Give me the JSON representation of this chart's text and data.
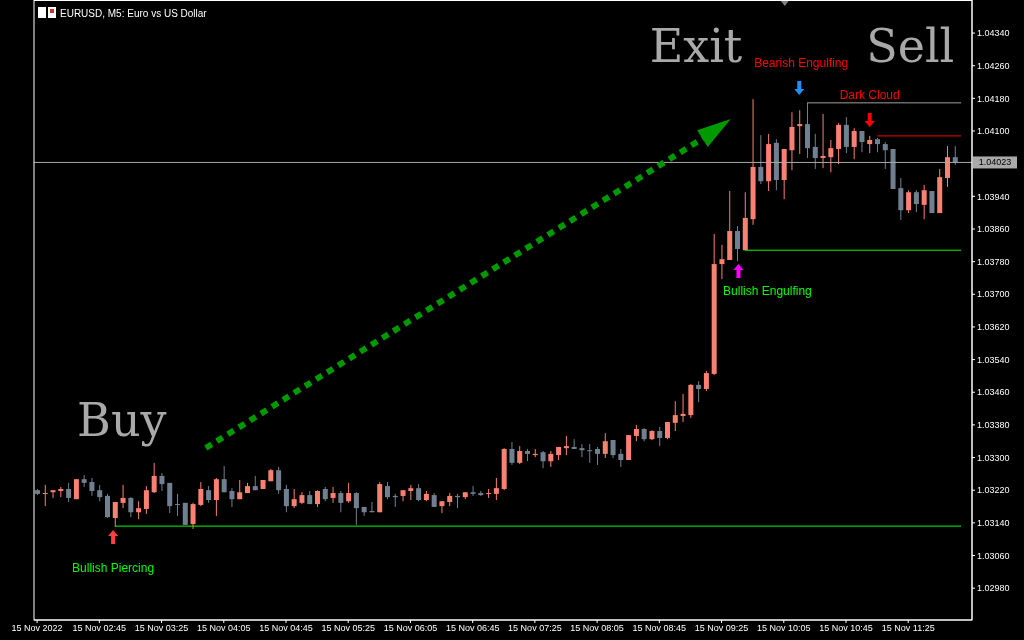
{
  "chart_data": {
    "type": "candlestick",
    "title": "EURUSD, M5: Euro vs US Dollar",
    "x": [
      "2022-11-15T02:05",
      "2022-11-15T02:10",
      "2022-11-15T02:15",
      "2022-11-15T02:20",
      "2022-11-15T02:25",
      "2022-11-15T02:30",
      "2022-11-15T02:35",
      "2022-11-15T02:40",
      "2022-11-15T02:45",
      "2022-11-15T02:50",
      "2022-11-15T02:55",
      "2022-11-15T03:00",
      "2022-11-15T03:05",
      "2022-11-15T03:10",
      "2022-11-15T03:15",
      "2022-11-15T03:20",
      "2022-11-15T03:25",
      "2022-11-15T03:30",
      "2022-11-15T03:35",
      "2022-11-15T03:40",
      "2022-11-15T03:45",
      "2022-11-15T03:50",
      "2022-11-15T03:55",
      "2022-11-15T04:00",
      "2022-11-15T04:05",
      "2022-11-15T04:10",
      "2022-11-15T04:15",
      "2022-11-15T04:20",
      "2022-11-15T04:25",
      "2022-11-15T04:30",
      "2022-11-15T04:35",
      "2022-11-15T04:40",
      "2022-11-15T04:45",
      "2022-11-15T04:50",
      "2022-11-15T04:55",
      "2022-11-15T05:00",
      "2022-11-15T05:05",
      "2022-11-15T05:10",
      "2022-11-15T05:15",
      "2022-11-15T05:20",
      "2022-11-15T05:25",
      "2022-11-15T05:30",
      "2022-11-15T05:35",
      "2022-11-15T05:40",
      "2022-11-15T05:45",
      "2022-11-15T05:50",
      "2022-11-15T05:55",
      "2022-11-15T06:00",
      "2022-11-15T06:05",
      "2022-11-15T06:10",
      "2022-11-15T06:15",
      "2022-11-15T06:20",
      "2022-11-15T06:25",
      "2022-11-15T06:30",
      "2022-11-15T06:35",
      "2022-11-15T06:40",
      "2022-11-15T06:45",
      "2022-11-15T06:50",
      "2022-11-15T06:55",
      "2022-11-15T07:00",
      "2022-11-15T07:05",
      "2022-11-15T07:10",
      "2022-11-15T07:15",
      "2022-11-15T07:20",
      "2022-11-15T07:25",
      "2022-11-15T07:30",
      "2022-11-15T07:35",
      "2022-11-15T07:40",
      "2022-11-15T07:45",
      "2022-11-15T07:50",
      "2022-11-15T07:55",
      "2022-11-15T08:00",
      "2022-11-15T08:05",
      "2022-11-15T08:10",
      "2022-11-15T08:15",
      "2022-11-15T08:20",
      "2022-11-15T08:25",
      "2022-11-15T08:30",
      "2022-11-15T08:35",
      "2022-11-15T08:40",
      "2022-11-15T08:45",
      "2022-11-15T08:50",
      "2022-11-15T08:55",
      "2022-11-15T09:00",
      "2022-11-15T09:05",
      "2022-11-15T09:10",
      "2022-11-15T09:15",
      "2022-11-15T09:20",
      "2022-11-15T09:25",
      "2022-11-15T09:30",
      "2022-11-15T09:35",
      "2022-11-15T09:40",
      "2022-11-15T09:45",
      "2022-11-15T09:50",
      "2022-11-15T09:55",
      "2022-11-15T10:00",
      "2022-11-15T10:05",
      "2022-11-15T10:10",
      "2022-11-15T10:15",
      "2022-11-15T10:20",
      "2022-11-15T10:25",
      "2022-11-15T10:30",
      "2022-11-15T10:35",
      "2022-11-15T10:40",
      "2022-11-15T10:45",
      "2022-11-15T10:50",
      "2022-11-15T10:55",
      "2022-11-15T11:00",
      "2022-11-15T11:05",
      "2022-11-15T11:10",
      "2022-11-15T11:15",
      "2022-11-15T11:20",
      "2022-11-15T11:25",
      "2022-11-15T11:30",
      "2022-11-15T11:35",
      "2022-11-15T11:40",
      "2022-11-15T11:45",
      "2022-11-15T11:50",
      "2022-11-15T11:55"
    ],
    "ohlc": [
      [
        1.0322,
        1.03223,
        1.03208,
        1.03211
      ],
      [
        1.03211,
        1.03233,
        1.03181,
        1.03213
      ],
      [
        1.03215,
        1.0322,
        1.03201,
        1.0322
      ],
      [
        1.03218,
        1.03228,
        1.03203,
        1.03223
      ],
      [
        1.03223,
        1.03238,
        1.03191,
        1.03201
      ],
      [
        1.03198,
        1.03247,
        1.03198,
        1.03247
      ],
      [
        1.03247,
        1.03257,
        1.03228,
        1.03238
      ],
      [
        1.0324,
        1.0325,
        1.03206,
        1.03218
      ],
      [
        1.0322,
        1.03233,
        1.03193,
        1.03203
      ],
      [
        1.03206,
        1.03211,
        1.03152,
        1.03154
      ],
      [
        1.03152,
        1.03191,
        1.0313,
        1.03191
      ],
      [
        1.03189,
        1.03233,
        1.03176,
        1.03201
      ],
      [
        1.03201,
        1.03203,
        1.03154,
        1.03166
      ],
      [
        1.03166,
        1.03193,
        1.03149,
        1.03176
      ],
      [
        1.03174,
        1.0323,
        1.03162,
        1.0322
      ],
      [
        1.03215,
        1.03287,
        1.03213,
        1.03255
      ],
      [
        1.03255,
        1.03262,
        1.03218,
        1.03235
      ],
      [
        1.03238,
        1.03238,
        1.03164,
        1.03181
      ],
      [
        1.03186,
        1.03211,
        1.03157,
        1.03184
      ],
      [
        1.03189,
        1.03189,
        1.03135,
        1.03135
      ],
      [
        1.03137,
        1.03189,
        1.03125,
        1.03186
      ],
      [
        1.03184,
        1.0324,
        1.03181,
        1.03223
      ],
      [
        1.0322,
        1.0323,
        1.03189,
        1.03196
      ],
      [
        1.03196,
        1.0325,
        1.03157,
        1.03247
      ],
      [
        1.03247,
        1.03279,
        1.03215,
        1.03215
      ],
      [
        1.03218,
        1.03225,
        1.03179,
        1.03198
      ],
      [
        1.03198,
        1.03245,
        1.03198,
        1.03215
      ],
      [
        1.03213,
        1.03238,
        1.03213,
        1.0323
      ],
      [
        1.0323,
        1.03255,
        1.0322,
        1.0322
      ],
      [
        1.03223,
        1.03245,
        1.03223,
        1.03245
      ],
      [
        1.03242,
        1.03272,
        1.03242,
        1.03269
      ],
      [
        1.03269,
        1.03277,
        1.03211,
        1.0322
      ],
      [
        1.03223,
        1.03233,
        1.03166,
        1.03181
      ],
      [
        1.03181,
        1.03223,
        1.03176,
        1.03198
      ],
      [
        1.03189,
        1.03215,
        1.03186,
        1.03208
      ],
      [
        1.03208,
        1.03218,
        1.03186,
        1.03186
      ],
      [
        1.03186,
        1.0322,
        1.03179,
        1.03218
      ],
      [
        1.03223,
        1.03228,
        1.03193,
        1.03198
      ],
      [
        1.03201,
        1.03228,
        1.03189,
        1.03213
      ],
      [
        1.03213,
        1.03218,
        1.03166,
        1.03189
      ],
      [
        1.03193,
        1.03238,
        1.03189,
        1.03213
      ],
      [
        1.03213,
        1.03215,
        1.03135,
        1.03176
      ],
      [
        1.03179,
        1.03179,
        1.03157,
        1.03166
      ],
      [
        1.03169,
        1.03191,
        1.03166,
        1.03166
      ],
      [
        1.03166,
        1.0324,
        1.03166,
        1.03235
      ],
      [
        1.0323,
        1.0324,
        1.03198,
        1.03203
      ],
      [
        1.03206,
        1.03211,
        1.03179,
        1.03203
      ],
      [
        1.03206,
        1.0322,
        1.03193,
        1.0322
      ],
      [
        1.03218,
        1.03233,
        1.03196,
        1.03225
      ],
      [
        1.03225,
        1.03235,
        1.03193,
        1.03196
      ],
      [
        1.03196,
        1.03218,
        1.03193,
        1.03211
      ],
      [
        1.03208,
        1.03213,
        1.03179,
        1.03179
      ],
      [
        1.03181,
        1.03193,
        1.03164,
        1.03193
      ],
      [
        1.03191,
        1.03213,
        1.03181,
        1.03206
      ],
      [
        1.03206,
        1.03211,
        1.03176,
        1.03203
      ],
      [
        1.03203,
        1.03215,
        1.03198,
        1.03215
      ],
      [
        1.03215,
        1.0323,
        1.03206,
        1.03211
      ],
      [
        1.03213,
        1.03218,
        1.03206,
        1.03208
      ],
      [
        1.03211,
        1.03223,
        1.03201,
        1.03213
      ],
      [
        1.03211,
        1.0325,
        1.03196,
        1.03225
      ],
      [
        1.03223,
        1.03323,
        1.0322,
        1.03321
      ],
      [
        1.03321,
        1.03338,
        1.03282,
        1.03287
      ],
      [
        1.03287,
        1.03328,
        1.03284,
        1.03316
      ],
      [
        1.03316,
        1.03321,
        1.03291,
        1.03309
      ],
      [
        1.03306,
        1.03321,
        1.03301,
        1.03309
      ],
      [
        1.03313,
        1.03316,
        1.03274,
        1.03291
      ],
      [
        1.03291,
        1.03316,
        1.03277,
        1.03309
      ],
      [
        1.03306,
        1.03326,
        1.03294,
        1.03326
      ],
      [
        1.03323,
        1.03353,
        1.03306,
        1.03328
      ],
      [
        1.03326,
        1.03345,
        1.03321,
        1.03321
      ],
      [
        1.03323,
        1.03333,
        1.03301,
        1.03318
      ],
      [
        1.03318,
        1.03333,
        1.03287,
        1.03316
      ],
      [
        1.03321,
        1.03326,
        1.03282,
        1.03309
      ],
      [
        1.03309,
        1.0336,
        1.03299,
        1.0334
      ],
      [
        1.03343,
        1.03343,
        1.03299,
        1.03306
      ],
      [
        1.03309,
        1.03321,
        1.03277,
        1.03294
      ],
      [
        1.03294,
        1.03355,
        1.03294,
        1.03355
      ],
      [
        1.03353,
        1.0338,
        1.0334,
        1.0337
      ],
      [
        1.0337,
        1.03372,
        1.0334,
        1.03345
      ],
      [
        1.03345,
        1.03367,
        1.03343,
        1.03365
      ],
      [
        1.03365,
        1.03375,
        1.03328,
        1.03348
      ],
      [
        1.03348,
        1.03387,
        1.03345,
        1.03387
      ],
      [
        1.03385,
        1.03438,
        1.03365,
        1.03404
      ],
      [
        1.03402,
        1.03456,
        1.03387,
        1.03407
      ],
      [
        1.03404,
        1.0348,
        1.03397,
        1.03478
      ],
      [
        1.03478,
        1.03487,
        1.03436,
        1.03468
      ],
      [
        1.03468,
        1.03512,
        1.03463,
        1.03507
      ],
      [
        1.03505,
        1.03848,
        1.03502,
        1.03774
      ],
      [
        1.03774,
        1.03821,
        1.03737,
        1.03786
      ],
      [
        1.03784,
        1.03953,
        1.03784,
        1.03855
      ],
      [
        1.03855,
        1.03867,
        1.03781,
        1.03811
      ],
      [
        1.03808,
        1.0395,
        1.03808,
        1.03887
      ],
      [
        1.03884,
        1.04178,
        1.0387,
        1.04012
      ],
      [
        1.04012,
        1.0409,
        1.0397,
        1.03977
      ],
      [
        1.03977,
        1.04093,
        1.03953,
        1.04068
      ],
      [
        1.04071,
        1.0408,
        1.03955,
        1.0398
      ],
      [
        1.0398,
        1.04056,
        1.03933,
        1.04056
      ],
      [
        1.04053,
        1.04146,
        1.04004,
        1.0411
      ],
      [
        1.04112,
        1.04151,
        1.04044,
        1.04117
      ],
      [
        1.04117,
        1.04169,
        1.04034,
        1.04058
      ],
      [
        1.04061,
        1.04093,
        1.04007,
        1.04034
      ],
      [
        1.04034,
        1.04142,
        1.04009,
        1.04039
      ],
      [
        1.04036,
        1.04078,
        1.03999,
        1.04058
      ],
      [
        1.04056,
        1.0412,
        1.04019,
        1.04115
      ],
      [
        1.04115,
        1.04134,
        1.04046,
        1.04061
      ],
      [
        1.04061,
        1.04107,
        1.04031,
        1.041
      ],
      [
        1.041,
        1.041,
        1.04048,
        1.04073
      ],
      [
        1.04068,
        1.04088,
        1.04046,
        1.04078
      ],
      [
        1.0408,
        1.04083,
        1.04048,
        1.04068
      ],
      [
        1.04068,
        1.04073,
        1.04007,
        1.04053
      ],
      [
        1.04056,
        1.04056,
        1.03958,
        1.03958
      ],
      [
        1.0396,
        1.03985,
        1.03882,
        1.03906
      ],
      [
        1.03906,
        1.03955,
        1.03899,
        1.0395
      ],
      [
        1.0395,
        1.03955,
        1.03901,
        1.03921
      ],
      [
        1.03919,
        1.03968,
        1.03884,
        1.03955
      ],
      [
        1.03953,
        1.03953,
        1.03899,
        1.03899
      ],
      [
        1.03899,
        1.04007,
        1.03899,
        1.03987
      ],
      [
        1.03985,
        1.04063,
        1.03963,
        1.04036
      ],
      [
        1.04036,
        1.04063,
        1.04017,
        1.04023
      ]
    ],
    "colors": [
      "#708090",
      "#fa8072",
      "#fa8072",
      "#fa8072",
      "#708090",
      "#fa8072",
      "#708090",
      "#708090",
      "#708090",
      "#708090",
      "#fa8072",
      "#fa8072",
      "#708090",
      "#fa8072",
      "#fa8072",
      "#fa8072",
      "#708090",
      "#708090",
      "#708090",
      "#708090",
      "#fa8072",
      "#fa8072",
      "#708090",
      "#fa8072",
      "#708090",
      "#708090",
      "#fa8072",
      "#fa8072",
      "#708090",
      "#fa8072",
      "#fa8072",
      "#708090",
      "#708090",
      "#fa8072",
      "#fa8072",
      "#708090",
      "#fa8072",
      "#708090",
      "#fa8072",
      "#708090",
      "#fa8072",
      "#708090",
      "#708090",
      "#708090",
      "#fa8072",
      "#708090",
      "#708090",
      "#fa8072",
      "#fa8072",
      "#708090",
      "#fa8072",
      "#708090",
      "#fa8072",
      "#fa8072",
      "#708090",
      "#fa8072",
      "#708090",
      "#708090",
      "#fa8072",
      "#fa8072",
      "#fa8072",
      "#708090",
      "#fa8072",
      "#708090",
      "#fa8072",
      "#708090",
      "#fa8072",
      "#fa8072",
      "#fa8072",
      "#708090",
      "#708090",
      "#708090",
      "#708090",
      "#fa8072",
      "#708090",
      "#708090",
      "#fa8072",
      "#fa8072",
      "#708090",
      "#fa8072",
      "#708090",
      "#fa8072",
      "#fa8072",
      "#fa8072",
      "#fa8072",
      "#708090",
      "#fa8072",
      "#fa8072",
      "#fa8072",
      "#fa8072",
      "#708090",
      "#fa8072",
      "#fa8072",
      "#708090",
      "#fa8072",
      "#708090",
      "#fa8072",
      "#fa8072",
      "#fa8072",
      "#708090",
      "#708090",
      "#fa8072",
      "#fa8072",
      "#fa8072",
      "#708090",
      "#fa8072",
      "#708090",
      "#fa8072",
      "#708090",
      "#708090",
      "#708090",
      "#708090",
      "#fa8072",
      "#708090",
      "#fa8072",
      "#708090",
      "#fa8072",
      "#fa8072",
      "#708090"
    ],
    "series": [
      {
        "type": "line",
        "color": "#00ff00",
        "x": [
          "2022-11-15T02:55",
          "2022-11-15T11:59"
        ],
        "values": [
          1.03132,
          1.03132
        ]
      },
      {
        "type": "line",
        "color": "#00ff00",
        "x": [
          "2022-11-15T09:40",
          "2022-11-15T11:59"
        ],
        "values": [
          1.03808,
          1.03808
        ]
      },
      {
        "type": "line",
        "color": "#a0a0a0",
        "x": [
          "2022-11-15T10:20",
          "2022-11-15T11:59"
        ],
        "values": [
          1.04169,
          1.04169
        ]
      },
      {
        "type": "line",
        "color": "#ff0000",
        "x": [
          "2022-11-15T11:05",
          "2022-11-15T11:59"
        ],
        "values": [
          1.04088,
          1.04088
        ]
      }
    ],
    "ref_lines": [
      {
        "axis": "y",
        "value": 1.04023,
        "label": "1.04023",
        "color": "#a9a9a9"
      }
    ],
    "annotations": [
      "Buy",
      "Exit",
      "Sell",
      "Bearish Engulfing",
      "Dark Cloud",
      "Bullish Engulfing",
      "Bullish Piercing"
    ],
    "xlim": [
      "2022-11-15T02:03",
      "2022-11-15T12:06"
    ],
    "xticks": [
      {
        "value": "2022-11-15T02:05",
        "label": "15 Nov 2022"
      },
      {
        "value": "2022-11-15T02:45",
        "label": "15 Nov 02:45"
      },
      {
        "value": "2022-11-15T03:25",
        "label": "15 Nov 03:25"
      },
      {
        "value": "2022-11-15T04:05",
        "label": "15 Nov 04:05"
      },
      {
        "value": "2022-11-15T04:45",
        "label": "15 Nov 04:45"
      },
      {
        "value": "2022-11-15T05:25",
        "label": "15 Nov 05:25"
      },
      {
        "value": "2022-11-15T06:05",
        "label": "15 Nov 06:05"
      },
      {
        "value": "2022-11-15T06:45",
        "label": "15 Nov 06:45"
      },
      {
        "value": "2022-11-15T07:25",
        "label": "15 Nov 07:25"
      },
      {
        "value": "2022-11-15T08:05",
        "label": "15 Nov 08:05"
      },
      {
        "value": "2022-11-15T08:45",
        "label": "15 Nov 08:45"
      },
      {
        "value": "2022-11-15T09:25",
        "label": "15 Nov 09:25"
      },
      {
        "value": "2022-11-15T10:05",
        "label": "15 Nov 10:05"
      },
      {
        "value": "2022-11-15T10:45",
        "label": "15 Nov 10:45"
      },
      {
        "value": "2022-11-15T11:25",
        "label": "15 Nov 11:25"
      }
    ],
    "ylim": [
      1.02902,
      1.04421
    ],
    "yticks": [
      {
        "value": 1.0298,
        "label": "1.02980"
      },
      {
        "value": 1.0306,
        "label": "1.03060"
      },
      {
        "value": 1.0314,
        "label": "1.03140"
      },
      {
        "value": 1.0322,
        "label": "1.03220"
      },
      {
        "value": 1.033,
        "label": "1.03300"
      },
      {
        "value": 1.0338,
        "label": "1.03380"
      },
      {
        "value": 1.0346,
        "label": "1.03460"
      },
      {
        "value": 1.0354,
        "label": "1.03540"
      },
      {
        "value": 1.0362,
        "label": "1.03620"
      },
      {
        "value": 1.037,
        "label": "1.03700"
      },
      {
        "value": 1.0378,
        "label": "1.03780"
      },
      {
        "value": 1.0386,
        "label": "1.03860"
      },
      {
        "value": 1.0394,
        "label": "1.03940"
      },
      {
        "value": 1.041,
        "label": "1.04100"
      },
      {
        "value": 1.0418,
        "label": "1.04180"
      },
      {
        "value": 1.0426,
        "label": "1.04260"
      },
      {
        "value": 1.0434,
        "label": "1.04340"
      }
    ]
  }
}
